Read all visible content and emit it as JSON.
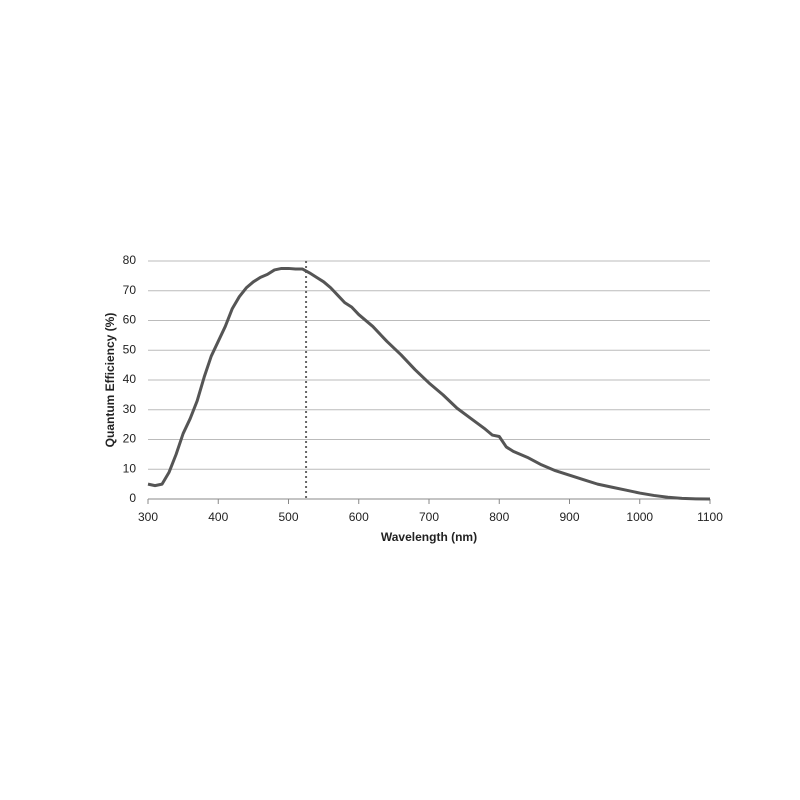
{
  "chart_data": {
    "type": "line",
    "x_label": "Wavelength (nm)",
    "y_label": "Quantum Efficiency (%)",
    "x": [
      300,
      310,
      320,
      330,
      340,
      350,
      360,
      370,
      380,
      390,
      400,
      410,
      420,
      430,
      440,
      450,
      460,
      470,
      480,
      490,
      500,
      510,
      520,
      530,
      540,
      550,
      560,
      570,
      580,
      590,
      600,
      620,
      640,
      660,
      680,
      700,
      720,
      740,
      760,
      780,
      790,
      800,
      810,
      820,
      840,
      860,
      880,
      900,
      920,
      940,
      960,
      980,
      1000,
      1020,
      1040,
      1060,
      1080,
      1100
    ],
    "values": [
      5,
      4.5,
      5,
      9,
      15,
      22,
      27,
      33,
      41,
      48,
      53,
      58,
      64,
      68,
      71,
      73,
      74.5,
      75.5,
      77,
      77.5,
      77.5,
      77.3,
      77.3,
      76,
      74.5,
      73,
      71,
      68.5,
      66,
      64.5,
      62,
      58,
      53,
      48.5,
      43.5,
      39,
      35,
      30.5,
      27,
      23.5,
      21.5,
      21,
      17.5,
      16,
      14,
      11.5,
      9.5,
      8,
      6.5,
      5,
      4,
      3,
      2,
      1.2,
      0.6,
      0.2,
      0.05,
      0
    ],
    "color": "#555555",
    "vline": 525,
    "xlim": [
      300,
      1100
    ],
    "xticks": [
      300,
      400,
      500,
      600,
      700,
      800,
      900,
      1000,
      1100
    ],
    "ylim": [
      0,
      80
    ],
    "yticks": [
      0,
      10,
      20,
      30,
      40,
      50,
      60,
      70,
      80
    ],
    "grid": true
  }
}
